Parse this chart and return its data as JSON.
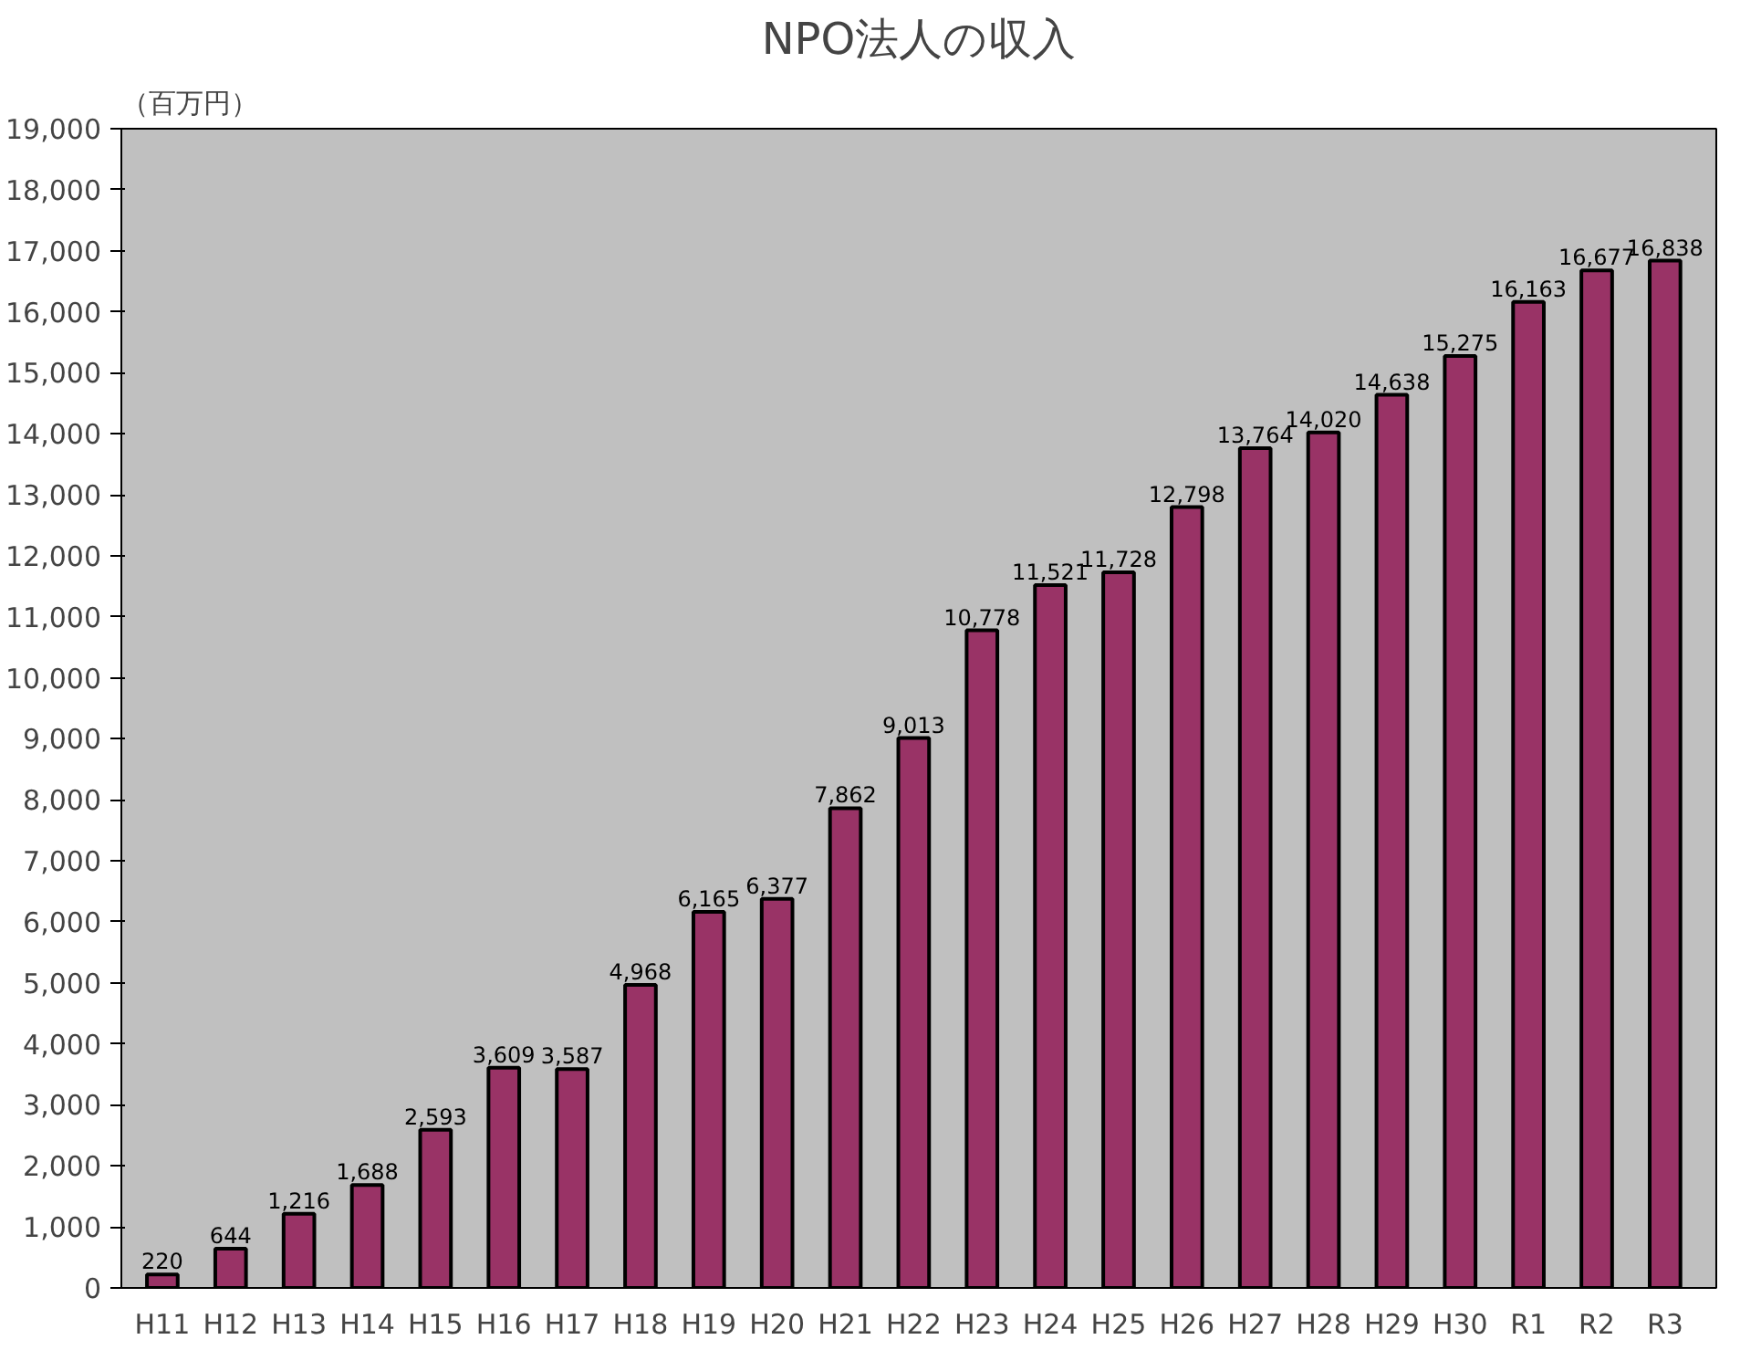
{
  "chart_data": {
    "type": "bar",
    "title": "NPO法人の収入",
    "ylabel": "（百万円）",
    "categories": [
      "H11",
      "H12",
      "H13",
      "H14",
      "H15",
      "H16",
      "H17",
      "H18",
      "H19",
      "H20",
      "H21",
      "H22",
      "H23",
      "H24",
      "H25",
      "H26",
      "H27",
      "H28",
      "H29",
      "H30",
      "R1",
      "R2",
      "R3"
    ],
    "values": [
      220,
      644,
      1216,
      1688,
      2593,
      3609,
      3587,
      4968,
      6165,
      6377,
      7862,
      9013,
      10778,
      11521,
      11728,
      12798,
      13764,
      14020,
      14638,
      15275,
      16163,
      16677,
      16838
    ],
    "color": "#993366",
    "ylim": [
      0,
      19000
    ],
    "yticks": [
      {
        "value": 0,
        "label": "0"
      },
      {
        "value": 1000,
        "label": "1,000"
      },
      {
        "value": 2000,
        "label": "2,000"
      },
      {
        "value": 3000,
        "label": "3,000"
      },
      {
        "value": 4000,
        "label": "4,000"
      },
      {
        "value": 5000,
        "label": "5,000"
      },
      {
        "value": 6000,
        "label": "6,000"
      },
      {
        "value": 7000,
        "label": "7,000"
      },
      {
        "value": 8000,
        "label": "8,000"
      },
      {
        "value": 9000,
        "label": "9,000"
      },
      {
        "value": 10000,
        "label": "10,000"
      },
      {
        "value": 11000,
        "label": "11,000"
      },
      {
        "value": 12000,
        "label": "12,000"
      },
      {
        "value": 13000,
        "label": "13,000"
      },
      {
        "value": 14000,
        "label": "14,000"
      },
      {
        "value": 15000,
        "label": "15,000"
      },
      {
        "value": 16000,
        "label": "16,000"
      },
      {
        "value": 17000,
        "label": "17,000"
      },
      {
        "value": 18000,
        "label": "18,000"
      },
      {
        "value": 19000,
        "label": "19,000"
      }
    ],
    "value_labels": [
      "220",
      "644",
      "1,216",
      "1,688",
      "2,593",
      "3,609",
      "3,587",
      "4,968",
      "6,165",
      "6,377",
      "7,862",
      "9,013",
      "10,778",
      "11,521",
      "11,728",
      "12,798",
      "13,764",
      "14,020",
      "14,638",
      "15,275",
      "16,163",
      "16,677",
      "16,838"
    ],
    "grid": false
  }
}
